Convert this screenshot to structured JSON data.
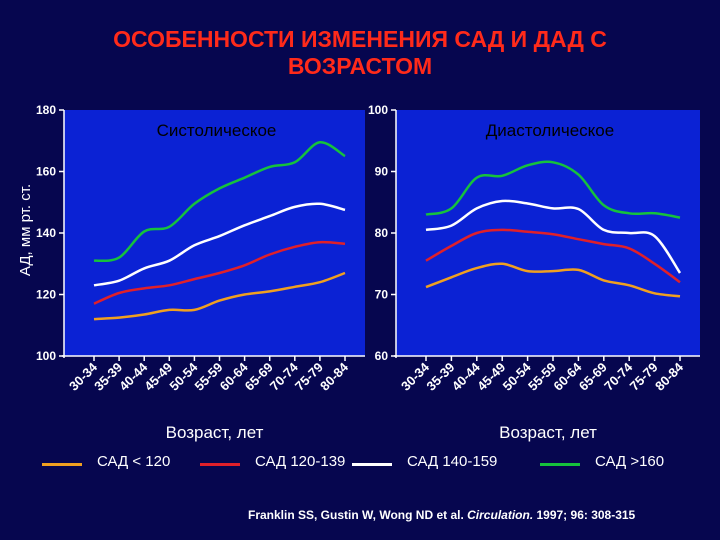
{
  "title_line1": "ОСОБЕННОСТИ ИЗМЕНЕНИЯ САД И ДАД С",
  "title_line2": "ВОЗРАСТОМ",
  "citation": {
    "authors": "Franklin SS, Gustin W, Wong ND et al.",
    "journal": "Circulation.",
    "ref": " 1997; 96: 308-315"
  },
  "legend": [
    {
      "label": "САД < 120",
      "color": "#f0a020"
    },
    {
      "label": "САД 120-139",
      "color": "#e0202a"
    },
    {
      "label": "САД 140-159",
      "color": "#ffffff"
    },
    {
      "label": "САД >160",
      "color": "#16c23c"
    }
  ],
  "chart_data": [
    {
      "type": "line",
      "title": "Систолическое",
      "ylabel": "АД, мм рт. ст.",
      "xlabel": "Возраст, лет",
      "ylim": [
        100,
        180
      ],
      "yticks": [
        100,
        120,
        140,
        160,
        180
      ],
      "categories": [
        "30-34",
        "35-39",
        "40-44",
        "45-49",
        "50-54",
        "55-59",
        "60-64",
        "65-69",
        "70-74",
        "75-79",
        "80-84"
      ],
      "background": "#0b22d4",
      "series": [
        {
          "name": "САД < 120",
          "color": "#f0a020",
          "values": [
            112,
            112.5,
            113.5,
            115,
            115,
            118,
            120,
            121,
            122.5,
            124,
            127
          ]
        },
        {
          "name": "САД 120-139",
          "color": "#e0202a",
          "values": [
            117,
            120.5,
            122,
            123,
            125,
            127,
            129.5,
            133,
            135.5,
            137,
            136.5
          ]
        },
        {
          "name": "САД 140-159",
          "color": "#ffffff",
          "values": [
            123,
            124.5,
            128.5,
            131,
            136,
            139,
            142.5,
            145.5,
            148.5,
            149.5,
            147.5
          ]
        },
        {
          "name": "САД >160",
          "color": "#16c23c",
          "values": [
            131,
            132,
            140.5,
            142,
            149.5,
            154.5,
            158,
            161.5,
            163,
            169.5,
            165
          ]
        }
      ]
    },
    {
      "type": "line",
      "title": "Диастолическое",
      "xlabel": "Возраст, лет",
      "ylim": [
        60,
        100
      ],
      "yticks": [
        60,
        70,
        80,
        90,
        100
      ],
      "categories": [
        "30-34",
        "35-39",
        "40-44",
        "45-49",
        "50-54",
        "55-59",
        "60-64",
        "65-69",
        "70-74",
        "75-79",
        "80-84"
      ],
      "background": "#0b22d4",
      "series": [
        {
          "name": "САД < 120",
          "color": "#f0a020",
          "values": [
            71.2,
            72.8,
            74.3,
            75,
            73.8,
            73.8,
            74,
            72.3,
            71.5,
            70.2,
            69.7
          ]
        },
        {
          "name": "САД 120-139",
          "color": "#e0202a",
          "values": [
            75.5,
            77.9,
            80,
            80.5,
            80.2,
            79.8,
            79,
            78.2,
            77.5,
            75,
            72
          ]
        },
        {
          "name": "САД 140-159",
          "color": "#ffffff",
          "values": [
            80.5,
            81.2,
            84,
            85.2,
            84.8,
            84,
            83.9,
            80.5,
            80,
            79.5,
            73.5
          ]
        },
        {
          "name": "САД >160",
          "color": "#16c23c",
          "values": [
            83,
            84,
            89,
            89.3,
            91,
            91.5,
            89.5,
            84.5,
            83.2,
            83.2,
            82.5
          ]
        }
      ]
    }
  ]
}
